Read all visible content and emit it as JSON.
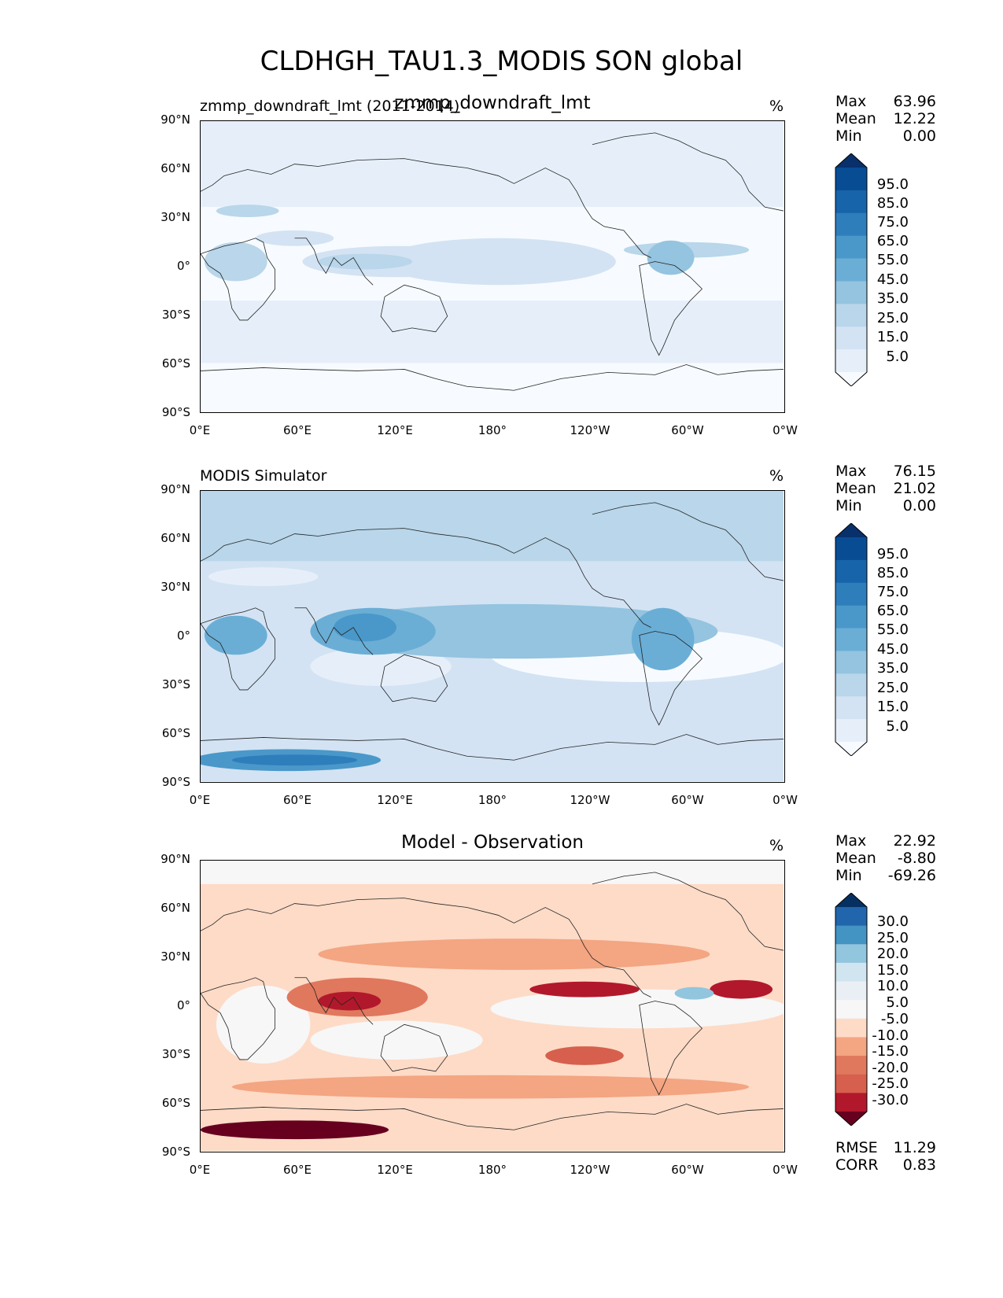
{
  "figure": {
    "title": "CLDHGH_TAU1.3_MODIS SON global",
    "lat_ticks": [
      "90°N",
      "60°N",
      "30°N",
      "0°",
      "30°S",
      "60°S",
      "90°S"
    ],
    "lon_ticks": [
      "0°E",
      "60°E",
      "120°E",
      "180°",
      "120°W",
      "60°W",
      "0°W"
    ]
  },
  "panels": [
    {
      "left_title": "zmmp_downdraft_lmt (2011-2014)",
      "center_title": "zmmp_downdraft_lmt",
      "units": "%",
      "stats": [
        {
          "label": "Max",
          "value": "63.96"
        },
        {
          "label": "Mean",
          "value": "12.22"
        },
        {
          "label": "Min",
          "value": "0.00"
        }
      ],
      "colorbar_labels": [
        "95.0",
        "85.0",
        "75.0",
        "65.0",
        "55.0",
        "45.0",
        "35.0",
        "25.0",
        "15.0",
        "5.0"
      ],
      "colorbar_colors": [
        "#08306b",
        "#084c94",
        "#1764ab",
        "#2e7ebc",
        "#4a98c9",
        "#6aaed6",
        "#94c4df",
        "#b9d6ea",
        "#d3e3f3",
        "#e6eff9",
        "#f7fbff"
      ]
    },
    {
      "left_title": "MODIS Simulator",
      "center_title": "",
      "units": "%",
      "stats": [
        {
          "label": "Max",
          "value": "76.15"
        },
        {
          "label": "Mean",
          "value": "21.02"
        },
        {
          "label": "Min",
          "value": "0.00"
        }
      ],
      "colorbar_labels": [
        "95.0",
        "85.0",
        "75.0",
        "65.0",
        "55.0",
        "45.0",
        "35.0",
        "25.0",
        "15.0",
        "5.0"
      ],
      "colorbar_colors": [
        "#08306b",
        "#084c94",
        "#1764ab",
        "#2e7ebc",
        "#4a98c9",
        "#6aaed6",
        "#94c4df",
        "#b9d6ea",
        "#d3e3f3",
        "#e6eff9",
        "#f7fbff"
      ]
    },
    {
      "left_title": "",
      "center_title": "Model - Observation",
      "units": "%",
      "stats": [
        {
          "label": "Max",
          "value": "22.92"
        },
        {
          "label": "Mean",
          "value": "-8.80"
        },
        {
          "label": "Min",
          "value": "-69.26"
        }
      ],
      "colorbar_labels": [
        "30.0",
        "25.0",
        "20.0",
        "15.0",
        "10.0",
        "5.0",
        "-5.0",
        "-10.0",
        "-15.0",
        "-20.0",
        "-25.0",
        "-30.0"
      ],
      "colorbar_colors": [
        "#053061",
        "#2166ac",
        "#4393c3",
        "#92c5de",
        "#d1e5f0",
        "#e9eff4",
        "#f7f7f7",
        "#fddbc7",
        "#f4a582",
        "#e0785e",
        "#d6604d",
        "#b2182b",
        "#67001f"
      ],
      "metrics": [
        {
          "label": "RMSE",
          "value": "11.29"
        },
        {
          "label": "CORR",
          "value": "0.83"
        }
      ]
    }
  ]
}
